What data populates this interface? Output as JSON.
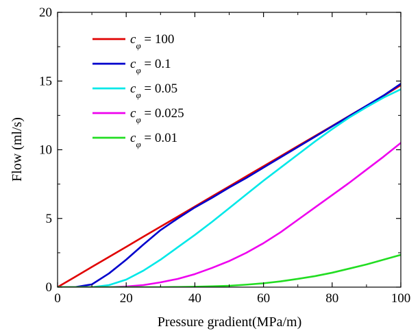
{
  "chart_data": {
    "type": "line",
    "title": "",
    "xlabel": "Pressure gradient(MPa/m)",
    "ylabel": "Flow (ml/s)",
    "xlim": [
      0,
      100
    ],
    "ylim": [
      0,
      20
    ],
    "x_ticks": [
      "0",
      "20",
      "40",
      "60",
      "80",
      "100"
    ],
    "y_ticks": [
      "0",
      "5",
      "10",
      "15",
      "20"
    ],
    "grid": false,
    "legend_position": "top-left",
    "x": [
      0,
      5,
      10,
      15,
      20,
      25,
      30,
      35,
      40,
      45,
      50,
      55,
      60,
      65,
      70,
      75,
      80,
      85,
      90,
      95,
      100
    ],
    "series": [
      {
        "name": "c",
        "name_subscript": "φ",
        "name_suffix": " = 100",
        "color": "#e00000",
        "values": [
          0,
          0.73,
          1.47,
          2.2,
          2.93,
          3.67,
          4.4,
          5.13,
          5.87,
          6.6,
          7.33,
          8.07,
          8.8,
          9.53,
          10.27,
          11.0,
          11.73,
          12.47,
          13.2,
          13.93,
          14.7
        ]
      },
      {
        "name": "c",
        "name_subscript": "φ",
        "name_suffix": " = 0.1",
        "color": "#0000cc",
        "values": [
          0,
          0.0,
          0.2,
          1.0,
          2.0,
          3.1,
          4.15,
          5.0,
          5.8,
          6.5,
          7.25,
          7.95,
          8.7,
          9.45,
          10.2,
          10.95,
          11.7,
          12.45,
          13.2,
          13.95,
          14.8
        ]
      },
      {
        "name": "c",
        "name_subscript": "φ",
        "name_suffix": " = 0.05",
        "color": "#00e8e8",
        "values": [
          0,
          0.0,
          0.0,
          0.15,
          0.55,
          1.2,
          2.0,
          2.9,
          3.8,
          4.75,
          5.75,
          6.75,
          7.75,
          8.7,
          9.65,
          10.6,
          11.5,
          12.35,
          13.1,
          13.8,
          14.4
        ]
      },
      {
        "name": "c",
        "name_subscript": "φ",
        "name_suffix": " = 0.025",
        "color": "#ee00ee",
        "values": [
          0,
          0.0,
          0.0,
          0.0,
          0.05,
          0.15,
          0.35,
          0.6,
          0.95,
          1.4,
          1.9,
          2.5,
          3.2,
          4.0,
          4.9,
          5.8,
          6.7,
          7.6,
          8.55,
          9.5,
          10.5
        ]
      },
      {
        "name": "c",
        "name_subscript": "φ",
        "name_suffix": " = 0.01",
        "color": "#22dd22",
        "values": [
          0,
          0.0,
          0.0,
          0.0,
          0.0,
          0.0,
          0.0,
          0.01,
          0.03,
          0.06,
          0.1,
          0.18,
          0.28,
          0.42,
          0.6,
          0.8,
          1.05,
          1.35,
          1.65,
          2.0,
          2.35
        ]
      }
    ]
  }
}
